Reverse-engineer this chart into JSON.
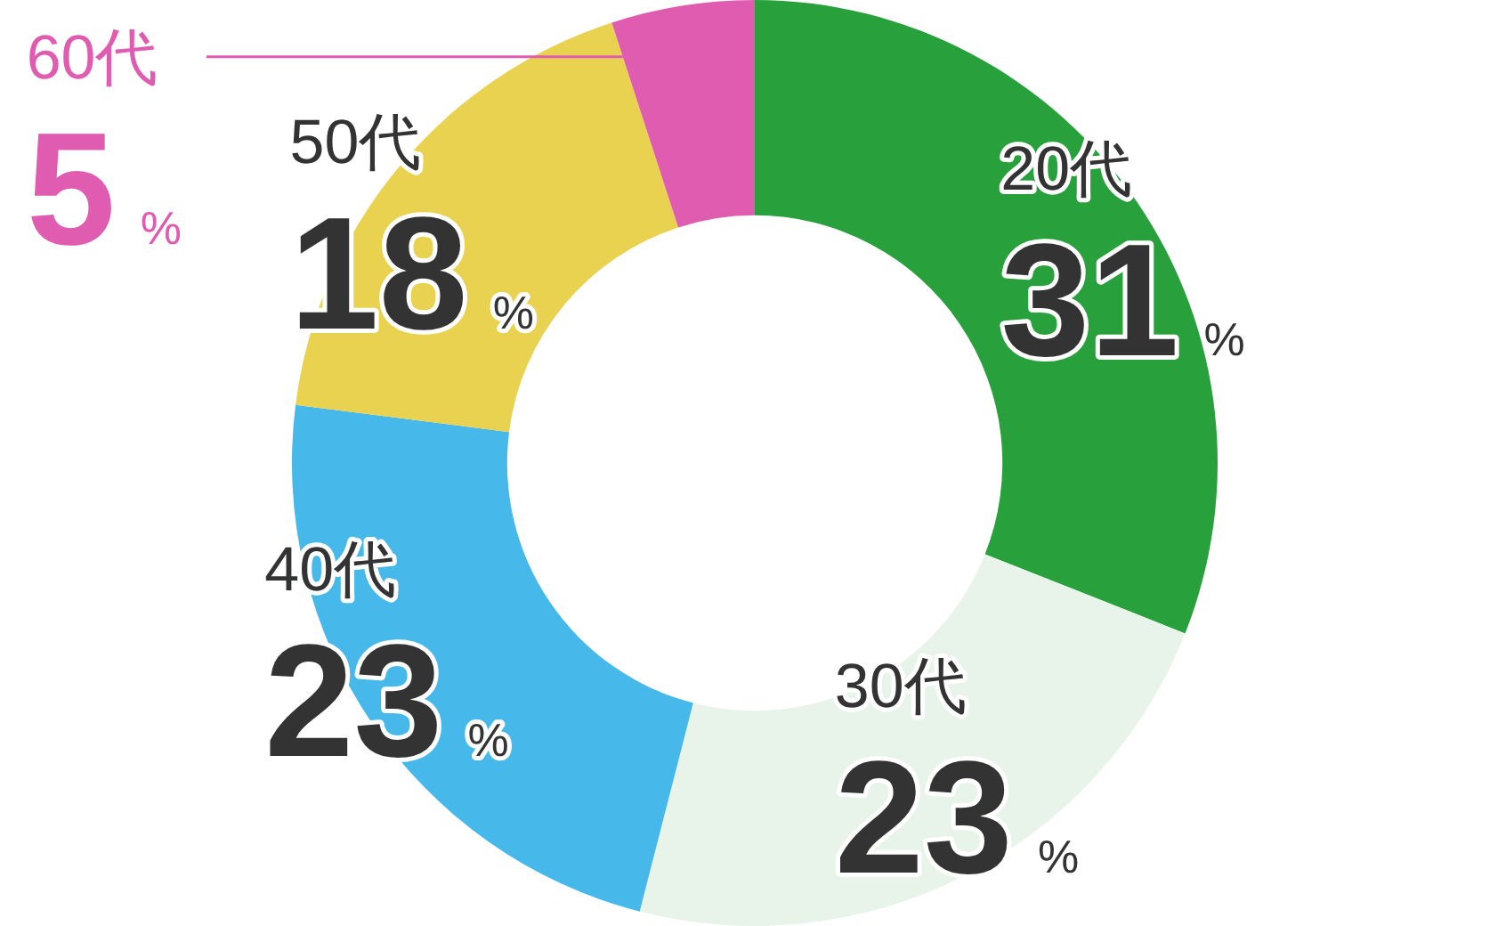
{
  "chart_data": {
    "type": "donut",
    "categories": [
      "20代",
      "30代",
      "40代",
      "50代",
      "60代"
    ],
    "values": [
      31,
      23,
      23,
      18,
      5
    ],
    "colors": [
      "#28a03b",
      "#e8f4ea",
      "#46b8e9",
      "#e9d24f",
      "#e05cb1"
    ],
    "value_labels": [
      "31%",
      "23%",
      "23%",
      "18%",
      "5%"
    ]
  }
}
